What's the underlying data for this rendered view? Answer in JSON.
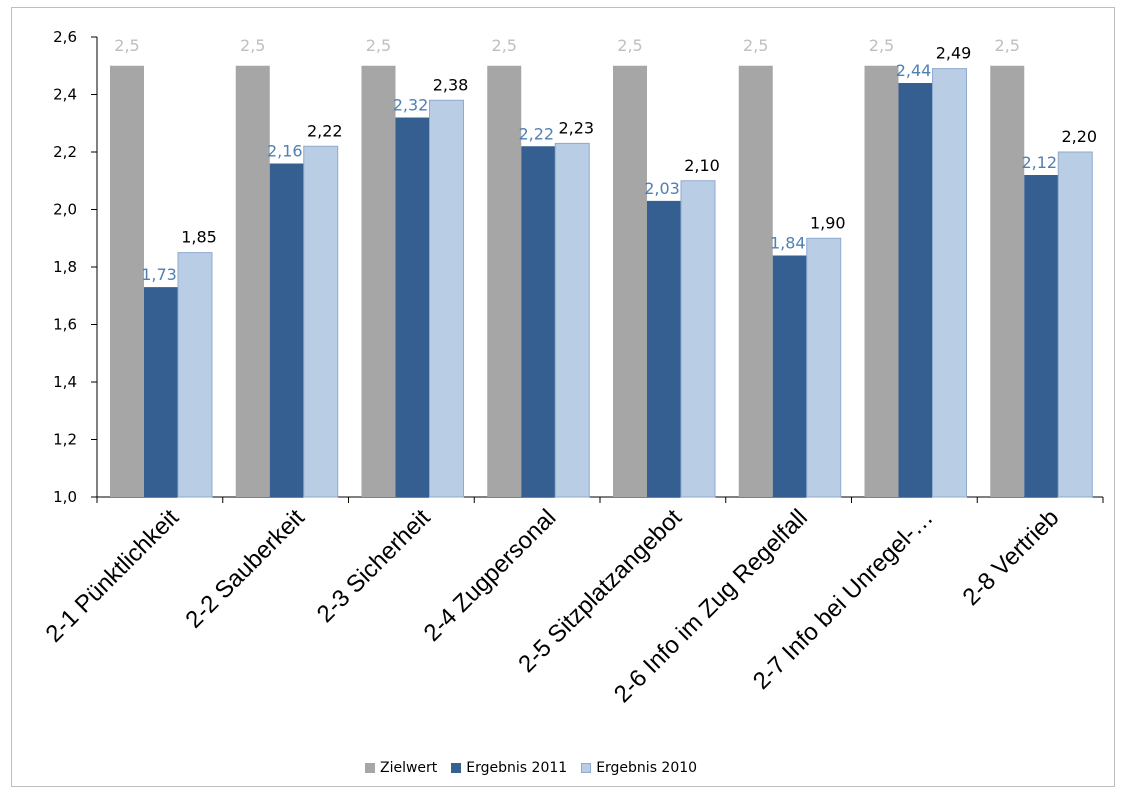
{
  "chart_data": {
    "type": "bar",
    "categories": [
      "2-1 Pünktlichkeit",
      "2-2 Sauberkeit",
      "2-3 Sicherheit",
      "2-4 Zugpersonal",
      "2-5 Sitzplatzangebot",
      "2-6 Info im Zug Regelfall",
      "2-7 Info bei Unregel-…",
      "2-8 Vertrieb"
    ],
    "series": [
      {
        "name": "Zielwert",
        "color": "#a6a6a6",
        "label_color": "#bfbfbf",
        "values": [
          2.5,
          2.5,
          2.5,
          2.5,
          2.5,
          2.5,
          2.5,
          2.5
        ],
        "labels": [
          "2,5",
          "2,5",
          "2,5",
          "2,5",
          "2,5",
          "2,5",
          "2,5",
          "2,5"
        ]
      },
      {
        "name": "Ergebnis 2011",
        "color": "#355f91",
        "label_color": "#4f7fb5",
        "values": [
          1.73,
          2.16,
          2.32,
          2.22,
          2.03,
          1.84,
          2.44,
          2.12
        ],
        "labels": [
          "1,73",
          "2,16",
          "2,32",
          "2,22",
          "2,03",
          "1,84",
          "2,44",
          "2,12"
        ]
      },
      {
        "name": "Ergebnis 2010",
        "color": "#b9cde5",
        "label_color": "#000000",
        "values": [
          1.85,
          2.22,
          2.38,
          2.23,
          2.1,
          1.9,
          2.49,
          2.2
        ],
        "labels": [
          "1,85",
          "2,22",
          "2,38",
          "2,23",
          "2,10",
          "1,90",
          "2,49",
          "2,20"
        ]
      }
    ],
    "yticks": [
      "1,0",
      "1,2",
      "1,4",
      "1,6",
      "1,8",
      "2,0",
      "2,2",
      "2,4",
      "2,6"
    ],
    "ylim": [
      1.0,
      2.6
    ],
    "title": "",
    "xlabel": "",
    "ylabel": "",
    "grid": false,
    "legend_position": "bottom"
  }
}
